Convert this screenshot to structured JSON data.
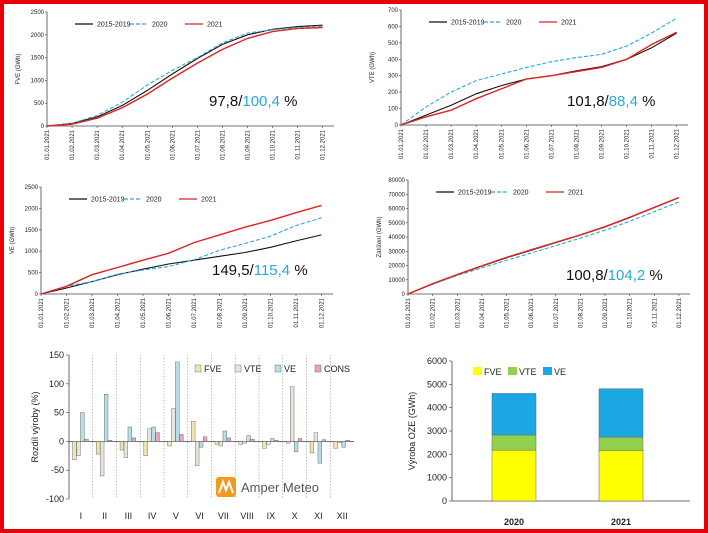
{
  "colors": {
    "frame": "#e8000b",
    "avg": "#111111",
    "y2020": "#29a8e0",
    "y2021": "#e2221e",
    "FVE": "#f0e4b0",
    "VTE": "#e8e6dc",
    "VE": "#b6dde8",
    "CONS": "#e8a6b6",
    "bar_FVE": "#ffff00",
    "bar_VTE": "#92d050",
    "bar_VE": "#1aa7e4",
    "pct_black": "#111111",
    "pct_blue": "#29a8e0"
  },
  "dates": [
    "01.01.2021",
    "01.02.2021",
    "01.03.2021",
    "01.04.2021",
    "01.05.2021",
    "01.06.2021",
    "01.07.2021",
    "01.08.2021",
    "01.09.2021",
    "01.10.2021",
    "01.11.2021",
    "01.12.2021"
  ],
  "logo": "Amper Meteo",
  "chart_data": [
    {
      "type": "line",
      "ylabel": "FVE (GWh)",
      "ylim": [
        0,
        2500
      ],
      "yticks": [
        0,
        500,
        1000,
        1500,
        2000,
        2500
      ],
      "series": [
        {
          "name": "2015-2019",
          "values": [
            0,
            60,
            200,
            450,
            780,
            1140,
            1480,
            1790,
            2000,
            2120,
            2180,
            2210
          ]
        },
        {
          "name": "2020",
          "values": [
            0,
            60,
            230,
            520,
            900,
            1220,
            1500,
            1820,
            2040,
            2110,
            2160,
            2190
          ]
        },
        {
          "name": "2021",
          "values": [
            0,
            40,
            170,
            400,
            700,
            1050,
            1380,
            1680,
            1920,
            2070,
            2140,
            2160
          ]
        }
      ],
      "pct": {
        "a": "97,8",
        "b": "100,4",
        "unit": "%"
      }
    },
    {
      "type": "line",
      "ylabel": "VTE (GWh)",
      "ylim": [
        0,
        700
      ],
      "yticks": [
        0,
        100,
        200,
        300,
        400,
        500,
        600,
        700
      ],
      "series": [
        {
          "name": "2015-2019",
          "values": [
            0,
            60,
            120,
            190,
            240,
            280,
            300,
            330,
            355,
            400,
            470,
            560
          ]
        },
        {
          "name": "2020",
          "values": [
            0,
            110,
            200,
            270,
            310,
            350,
            385,
            410,
            430,
            480,
            560,
            650
          ]
        },
        {
          "name": "2021",
          "values": [
            0,
            50,
            90,
            160,
            220,
            280,
            300,
            325,
            350,
            400,
            490,
            565
          ]
        }
      ],
      "pct": {
        "a": "101,8",
        "b": "88,4",
        "unit": "%"
      }
    },
    {
      "type": "line",
      "ylabel": "VE (GWh)",
      "ylim": [
        0,
        2500
      ],
      "yticks": [
        0,
        500,
        1000,
        1500,
        2000,
        2500
      ],
      "series": [
        {
          "name": "2015-2019",
          "values": [
            0,
            140,
            290,
            450,
            580,
            700,
            790,
            880,
            970,
            1090,
            1240,
            1380
          ]
        },
        {
          "name": "2020",
          "values": [
            0,
            180,
            290,
            460,
            560,
            640,
            800,
            1020,
            1180,
            1350,
            1600,
            1780
          ]
        },
        {
          "name": "2021",
          "values": [
            0,
            180,
            450,
            620,
            790,
            950,
            1200,
            1380,
            1560,
            1720,
            1900,
            2070
          ]
        }
      ],
      "pct": {
        "a": "149,5",
        "b": "115,4",
        "unit": "%"
      }
    },
    {
      "type": "line",
      "ylabel": "Zatížení (GWh)",
      "ylim": [
        0,
        80000
      ],
      "yticks": [
        0,
        10000,
        20000,
        30000,
        40000,
        50000,
        60000,
        70000,
        80000
      ],
      "series": [
        {
          "name": "2015-2019",
          "values": [
            0,
            7000,
            13500,
            19600,
            25400,
            30700,
            36100,
            41300,
            47000,
            53600,
            60600,
            67500
          ]
        },
        {
          "name": "2020",
          "values": [
            0,
            6800,
            13000,
            18400,
            23600,
            28800,
            34000,
            39200,
            44800,
            51000,
            57800,
            64600
          ]
        },
        {
          "name": "2021",
          "values": [
            0,
            7200,
            13700,
            19800,
            25700,
            31000,
            36300,
            41500,
            47200,
            53800,
            60800,
            67700
          ]
        }
      ],
      "pct": {
        "a": "100,8",
        "b": "104,2",
        "unit": "%"
      }
    },
    {
      "type": "bar",
      "ylabel": "Rozdíl výroby (%)",
      "ylim": [
        -100,
        150
      ],
      "yticks": [
        -100,
        -50,
        0,
        50,
        100,
        150
      ],
      "categories": [
        "I",
        "II",
        "III",
        "IV",
        "V",
        "VI",
        "VII",
        "VIII",
        "IX",
        "X",
        "XI",
        "XII"
      ],
      "series": [
        {
          "name": "FVE",
          "values": [
            -32,
            -22,
            -15,
            -25,
            -8,
            35,
            -5,
            -5,
            -12,
            -3,
            -20,
            -12
          ]
        },
        {
          "name": "VTE",
          "values": [
            -25,
            -60,
            -28,
            22,
            57,
            -42,
            -8,
            -3,
            -5,
            95,
            15,
            -2
          ]
        },
        {
          "name": "VE",
          "values": [
            50,
            82,
            25,
            25,
            138,
            -10,
            18,
            10,
            5,
            -18,
            -38,
            -10
          ]
        },
        {
          "name": "CONS",
          "values": [
            4,
            2,
            6,
            15,
            12,
            8,
            6,
            4,
            2,
            5,
            3,
            2
          ]
        }
      ]
    },
    {
      "type": "bar",
      "stacked": true,
      "ylabel": "Výroba OZE (GWh)",
      "ylim": [
        0,
        6000
      ],
      "yticks": [
        0,
        1000,
        2000,
        3000,
        4000,
        5000,
        6000
      ],
      "categories": [
        "2020",
        "2021"
      ],
      "series": [
        {
          "name": "FVE",
          "values": [
            2180,
            2170
          ]
        },
        {
          "name": "VTE",
          "values": [
            650,
            570
          ]
        },
        {
          "name": "VE",
          "values": [
            1780,
            2070
          ]
        }
      ]
    }
  ]
}
